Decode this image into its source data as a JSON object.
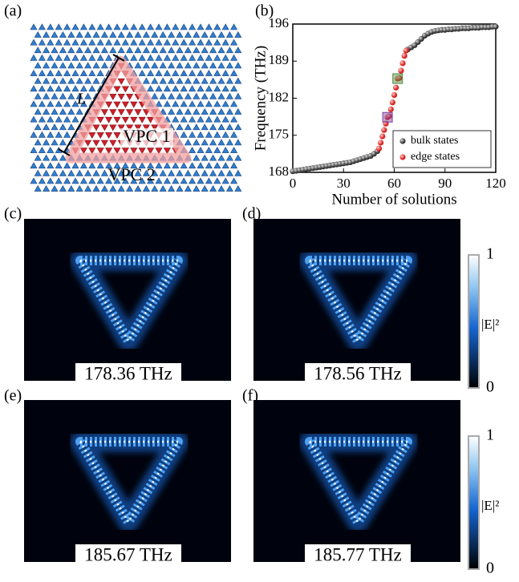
{
  "panel_labels": [
    "(a)",
    "(b)",
    "(c)",
    "(d)",
    "(e)",
    "(f)"
  ],
  "lattice": {
    "length_label": "L",
    "inner": "VPC 1",
    "outer": "VPC 2"
  },
  "chart_data": {
    "type": "scatter",
    "xlabel": "Number of solutions",
    "ylabel": "Frequency (THz)",
    "xlim": [
      0,
      120
    ],
    "xticks": [
      0,
      30,
      60,
      90,
      120
    ],
    "ylim": [
      168,
      196
    ],
    "yticks": [
      168,
      175,
      182,
      189,
      196
    ],
    "legend": "lower right",
    "series": [
      {
        "name": "bulk states",
        "color": "#6e6e6e",
        "x": [
          0,
          2,
          4,
          6,
          8,
          10,
          12,
          14,
          16,
          18,
          20,
          22,
          24,
          26,
          28,
          30,
          32,
          34,
          36,
          38,
          40,
          42,
          44,
          46,
          48,
          50,
          68,
          70,
          72,
          74,
          76,
          78,
          80,
          82,
          84,
          86,
          88,
          90,
          92,
          94,
          96,
          98,
          100,
          102,
          104,
          106,
          108,
          110,
          112,
          114,
          116,
          118,
          120
        ],
        "values": [
          168.2,
          168.3,
          168.4,
          168.5,
          168.6,
          168.7,
          168.8,
          168.9,
          169.0,
          169.1,
          169.2,
          169.3,
          169.4,
          169.5,
          169.6,
          169.7,
          169.8,
          169.9,
          170.1,
          170.3,
          170.5,
          170.7,
          170.9,
          171.1,
          171.5,
          172.0,
          191.2,
          191.6,
          192.0,
          192.6,
          193.2,
          193.8,
          194.2,
          194.5,
          194.7,
          194.8,
          194.9,
          194.9,
          195.0,
          195.0,
          195.1,
          195.1,
          195.2,
          195.2,
          195.2,
          195.3,
          195.3,
          195.3,
          195.4,
          195.4,
          195.4,
          195.5,
          195.5
        ]
      },
      {
        "name": "edge states",
        "color": "#e8413c",
        "x": [
          51,
          52,
          53,
          54,
          55,
          56,
          57,
          58,
          59,
          60,
          61,
          62,
          63,
          64,
          65,
          66,
          67
        ],
        "values": [
          172.5,
          173.6,
          174.8,
          176.0,
          177.2,
          178.4,
          178.6,
          179.9,
          181.2,
          182.6,
          184.0,
          185.7,
          185.8,
          187.2,
          188.6,
          190.0,
          191.0
        ]
      }
    ]
  },
  "field_maps": [
    {
      "frequency": "178.36 THz",
      "color": "#2323d8"
    },
    {
      "frequency": "178.56 THz",
      "color": "#2323d8"
    },
    {
      "frequency": "185.67 THz",
      "color": "#1a9a4a"
    },
    {
      "frequency": "185.77 THz",
      "color": "#1a9a4a"
    }
  ],
  "colorbar": {
    "ticks": [
      0,
      1
    ],
    "label": "|E|²"
  }
}
